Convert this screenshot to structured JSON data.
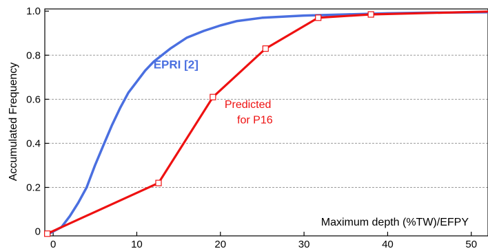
{
  "chart_data": {
    "type": "line",
    "title": "",
    "xlabel": "Maximum depth (%TW)/EFPY",
    "ylabel": "Accumulated Frequency",
    "xlim": [
      -1,
      52
    ],
    "ylim": [
      -0.02,
      1.01
    ],
    "x_ticks": [
      0,
      10,
      20,
      30,
      40,
      50
    ],
    "x_tick_labels": [
      "0",
      "10",
      "20",
      "30",
      "40",
      "50"
    ],
    "y_ticks": [
      0,
      0.2,
      0.4,
      0.6,
      0.8,
      1.0
    ],
    "y_tick_labels": [
      "0",
      "0.2",
      "0.4",
      "0.6",
      "0.8",
      "1.0"
    ],
    "grid": "horizontal dashed",
    "legend": "none",
    "series": [
      {
        "color": "#4a6fe0",
        "marker": "none",
        "x": [
          -0.5,
          1,
          2,
          3,
          4,
          5,
          6,
          7,
          8,
          9,
          10,
          11,
          12,
          14,
          16,
          18,
          20,
          22,
          25,
          30,
          35,
          40,
          45,
          52
        ],
        "y": [
          -0.01,
          0.02,
          0.07,
          0.13,
          0.2,
          0.3,
          0.39,
          0.48,
          0.56,
          0.63,
          0.68,
          0.73,
          0.77,
          0.83,
          0.88,
          0.91,
          0.935,
          0.955,
          0.97,
          0.98,
          0.985,
          0.99,
          0.993,
          0.995
        ]
      },
      {
        "color": "#ee1111",
        "marker": "square",
        "x": [
          -0.7,
          12.6,
          19.1,
          25.4,
          31.7,
          38.0,
          52
        ],
        "y": [
          -0.01,
          0.22,
          0.61,
          0.83,
          0.97,
          0.985,
          0.998
        ],
        "markers_x": [
          -0.7,
          12.6,
          19.1,
          25.4,
          31.7,
          38.0
        ],
        "markers_y": [
          -0.01,
          0.22,
          0.61,
          0.83,
          0.97,
          0.985
        ]
      }
    ],
    "annotations": [
      {
        "text": "EPRI [2]",
        "color": "#4a6fe0",
        "x": 12,
        "y": 0.74
      },
      {
        "text": "Predicted",
        "color": "#ee1111",
        "x": 20.5,
        "y": 0.56
      },
      {
        "text": "for P16",
        "color": "#ee1111",
        "x": 22,
        "y": 0.49
      }
    ]
  }
}
